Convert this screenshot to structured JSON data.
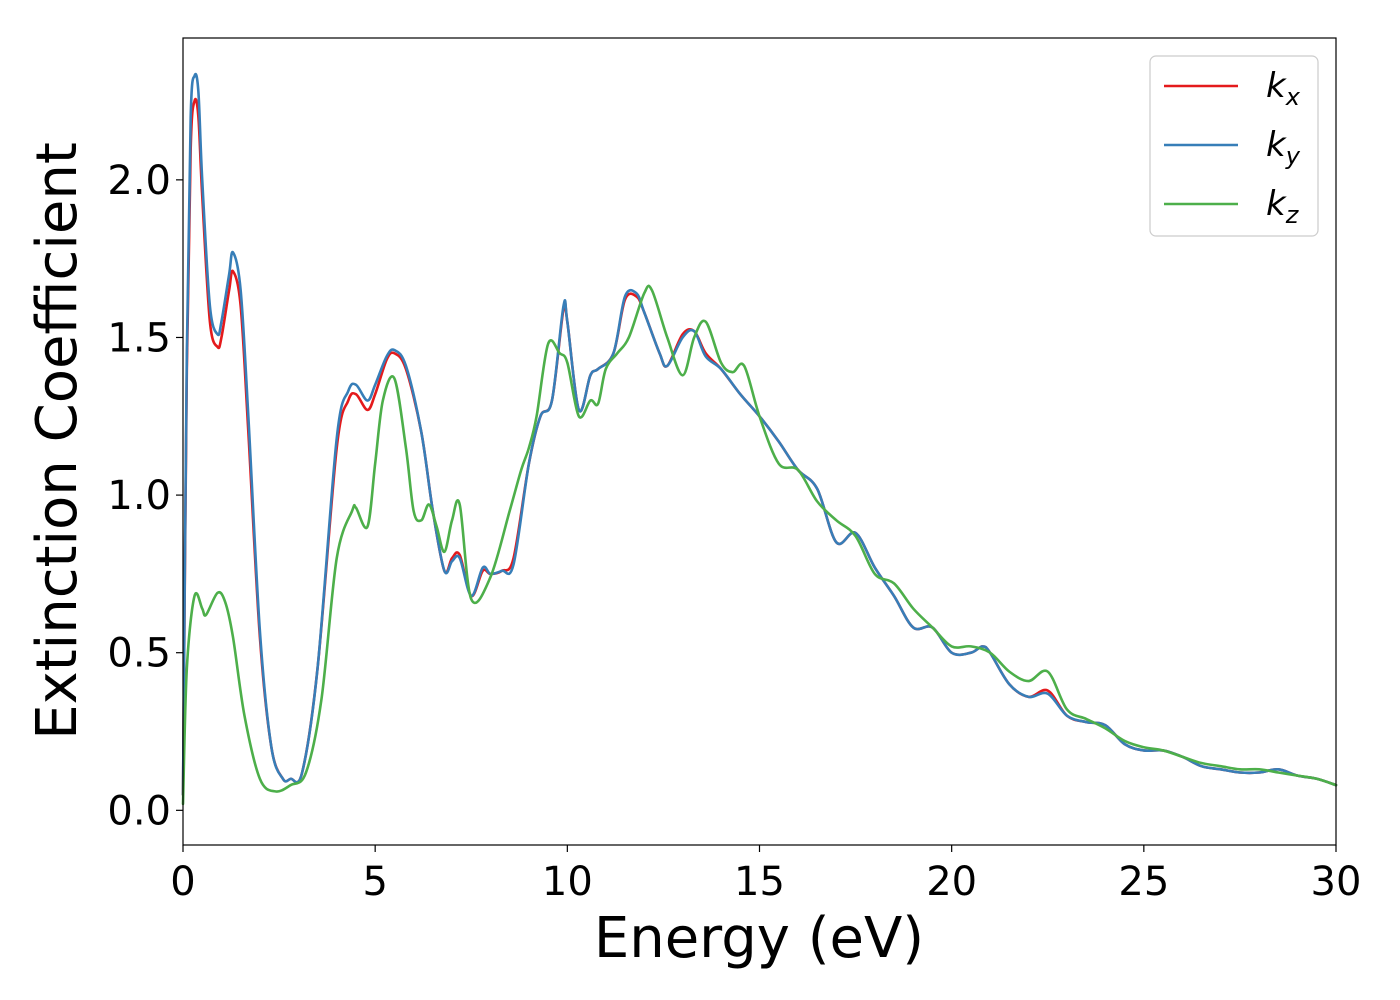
{
  "chart_data": {
    "type": "line",
    "title": "",
    "xlabel": "Energy (eV)",
    "ylabel": "Extinction Coefficient",
    "xlim": [
      0,
      30
    ],
    "ylim": [
      -0.11,
      2.45
    ],
    "xticks": [
      0,
      5,
      10,
      15,
      20,
      25,
      30
    ],
    "xtick_labels": [
      "0",
      "5",
      "10",
      "15",
      "20",
      "25",
      "30"
    ],
    "yticks": [
      0.0,
      0.5,
      1.0,
      1.5,
      2.0
    ],
    "ytick_labels": [
      "0.0",
      "0.5",
      "1.0",
      "1.5",
      "2.0"
    ],
    "grid": false,
    "legend_position": "top-right",
    "series": [
      {
        "name": "kx",
        "label_base": "k",
        "label_sub": "x",
        "color": "#e41a1c",
        "x": [
          0.0,
          0.1,
          0.2,
          0.3,
          0.4,
          0.5,
          0.7,
          0.9,
          1.0,
          1.2,
          1.3,
          1.5,
          1.7,
          2.0,
          2.3,
          2.6,
          2.8,
          3.1,
          3.5,
          4.0,
          4.3,
          4.5,
          4.8,
          5.0,
          5.3,
          5.5,
          5.8,
          6.2,
          6.5,
          6.8,
          7.0,
          7.2,
          7.5,
          7.8,
          8.0,
          8.3,
          8.6,
          9.0,
          9.3,
          9.6,
          9.9,
          10.0,
          10.3,
          10.6,
          10.8,
          11.2,
          11.5,
          11.8,
          12.0,
          12.4,
          12.6,
          13.0,
          13.3,
          13.6,
          14.0,
          14.5,
          15.0,
          15.5,
          16.0,
          16.5,
          17.0,
          17.5,
          18.0,
          18.5,
          19.0,
          19.5,
          20.0,
          20.5,
          20.8,
          21.0,
          21.5,
          22.0,
          22.5,
          23.0,
          23.5,
          24.0,
          24.5,
          25.0,
          25.5,
          26.0,
          26.5,
          27.0,
          27.5,
          28.0,
          28.5,
          29.0,
          29.5,
          30.0
        ],
        "y": [
          0.05,
          1.4,
          2.1,
          2.25,
          2.2,
          1.95,
          1.55,
          1.47,
          1.5,
          1.65,
          1.71,
          1.6,
          1.2,
          0.55,
          0.2,
          0.1,
          0.1,
          0.12,
          0.45,
          1.15,
          1.3,
          1.32,
          1.27,
          1.32,
          1.43,
          1.45,
          1.4,
          1.2,
          0.95,
          0.76,
          0.8,
          0.81,
          0.68,
          0.76,
          0.75,
          0.76,
          0.8,
          1.1,
          1.25,
          1.3,
          1.59,
          1.55,
          1.27,
          1.38,
          1.4,
          1.45,
          1.62,
          1.63,
          1.58,
          1.45,
          1.41,
          1.51,
          1.52,
          1.45,
          1.4,
          1.32,
          1.25,
          1.17,
          1.08,
          1.02,
          0.85,
          0.88,
          0.77,
          0.68,
          0.58,
          0.58,
          0.5,
          0.5,
          0.52,
          0.5,
          0.4,
          0.36,
          0.38,
          0.3,
          0.28,
          0.27,
          0.21,
          0.19,
          0.19,
          0.17,
          0.14,
          0.13,
          0.12,
          0.12,
          0.13,
          0.11,
          0.1,
          0.08
        ]
      },
      {
        "name": "ky",
        "label_base": "k",
        "label_sub": "y",
        "color": "#377eb8",
        "x": [
          0.0,
          0.1,
          0.2,
          0.3,
          0.4,
          0.5,
          0.7,
          0.9,
          1.0,
          1.2,
          1.3,
          1.5,
          1.7,
          2.0,
          2.3,
          2.6,
          2.8,
          3.1,
          3.5,
          4.0,
          4.3,
          4.5,
          4.8,
          5.0,
          5.3,
          5.5,
          5.8,
          6.2,
          6.5,
          6.8,
          7.0,
          7.2,
          7.5,
          7.8,
          8.0,
          8.3,
          8.6,
          9.0,
          9.3,
          9.6,
          9.9,
          10.0,
          10.3,
          10.6,
          10.8,
          11.2,
          11.5,
          11.8,
          12.0,
          12.4,
          12.6,
          13.0,
          13.3,
          13.6,
          14.0,
          14.5,
          15.0,
          15.5,
          16.0,
          16.5,
          17.0,
          17.5,
          18.0,
          18.5,
          19.0,
          19.5,
          20.0,
          20.5,
          20.8,
          21.0,
          21.5,
          22.0,
          22.5,
          23.0,
          23.5,
          24.0,
          24.5,
          25.0,
          25.5,
          26.0,
          26.5,
          27.0,
          27.5,
          28.0,
          28.5,
          29.0,
          29.5,
          30.0
        ],
        "y": [
          0.05,
          1.45,
          2.2,
          2.33,
          2.28,
          2.0,
          1.6,
          1.51,
          1.55,
          1.7,
          1.77,
          1.65,
          1.25,
          0.57,
          0.2,
          0.1,
          0.1,
          0.12,
          0.45,
          1.18,
          1.33,
          1.35,
          1.3,
          1.35,
          1.44,
          1.46,
          1.41,
          1.2,
          0.95,
          0.76,
          0.79,
          0.8,
          0.68,
          0.77,
          0.75,
          0.76,
          0.78,
          1.1,
          1.25,
          1.3,
          1.6,
          1.55,
          1.27,
          1.38,
          1.4,
          1.45,
          1.63,
          1.64,
          1.58,
          1.45,
          1.41,
          1.5,
          1.52,
          1.44,
          1.4,
          1.32,
          1.25,
          1.17,
          1.08,
          1.02,
          0.85,
          0.88,
          0.77,
          0.68,
          0.58,
          0.58,
          0.5,
          0.5,
          0.52,
          0.5,
          0.4,
          0.36,
          0.37,
          0.3,
          0.28,
          0.27,
          0.21,
          0.19,
          0.19,
          0.17,
          0.14,
          0.13,
          0.12,
          0.12,
          0.13,
          0.11,
          0.1,
          0.08
        ]
      },
      {
        "name": "kz",
        "label_base": "k",
        "label_sub": "z",
        "color": "#4daf4a",
        "x": [
          0.0,
          0.1,
          0.3,
          0.5,
          0.6,
          0.9,
          1.1,
          1.3,
          1.6,
          2.0,
          2.4,
          2.8,
          3.2,
          3.6,
          4.0,
          4.4,
          4.5,
          4.8,
          5.0,
          5.2,
          5.5,
          5.8,
          6.0,
          6.2,
          6.4,
          6.6,
          6.8,
          7.0,
          7.2,
          7.5,
          8.0,
          8.5,
          8.8,
          9.0,
          9.2,
          9.5,
          9.8,
          10.0,
          10.3,
          10.6,
          10.8,
          11.0,
          11.3,
          11.6,
          12.0,
          12.2,
          12.6,
          13.0,
          13.3,
          13.6,
          14.0,
          14.3,
          14.6,
          15.0,
          15.5,
          16.0,
          16.5,
          17.0,
          17.5,
          18.0,
          18.5,
          19.0,
          19.5,
          20.0,
          20.5,
          21.0,
          21.5,
          22.0,
          22.5,
          23.0,
          23.5,
          24.0,
          24.5,
          25.0,
          25.5,
          26.0,
          26.5,
          27.0,
          27.5,
          28.0,
          28.5,
          29.0,
          29.5,
          30.0
        ],
        "y": [
          0.02,
          0.45,
          0.68,
          0.64,
          0.62,
          0.69,
          0.66,
          0.55,
          0.3,
          0.1,
          0.06,
          0.08,
          0.12,
          0.35,
          0.8,
          0.95,
          0.96,
          0.9,
          1.1,
          1.3,
          1.37,
          1.15,
          0.95,
          0.92,
          0.97,
          0.9,
          0.82,
          0.92,
          0.97,
          0.67,
          0.74,
          0.95,
          1.08,
          1.15,
          1.25,
          1.48,
          1.45,
          1.42,
          1.25,
          1.3,
          1.29,
          1.4,
          1.45,
          1.5,
          1.64,
          1.65,
          1.5,
          1.38,
          1.5,
          1.55,
          1.42,
          1.39,
          1.41,
          1.25,
          1.1,
          1.08,
          0.98,
          0.92,
          0.87,
          0.75,
          0.72,
          0.64,
          0.58,
          0.52,
          0.52,
          0.5,
          0.44,
          0.41,
          0.44,
          0.32,
          0.29,
          0.26,
          0.22,
          0.2,
          0.19,
          0.17,
          0.15,
          0.14,
          0.13,
          0.13,
          0.12,
          0.11,
          0.1,
          0.08
        ]
      }
    ]
  }
}
